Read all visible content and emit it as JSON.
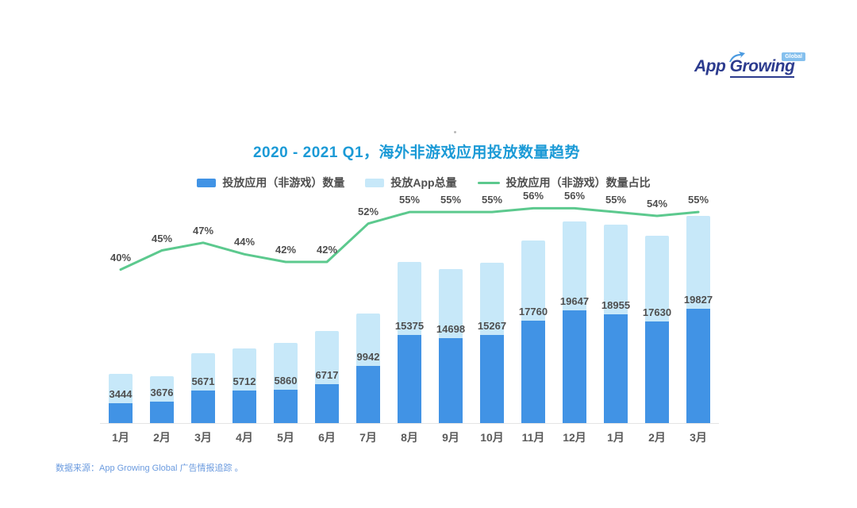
{
  "logo": {
    "text_app": "App",
    "text_growing": "Growing",
    "badge": "Global",
    "text_color": "#2c3b8e",
    "badge_color": "#85c0ee",
    "swoosh_color": "#4a9ae0"
  },
  "footer": {
    "text": "数据来源：App Growing Global 广告情报追踪 。",
    "color": "#6b9bdf"
  },
  "colors": {
    "title_blue": "#1b9ad6",
    "label_gray": "#4f4f4f",
    "axis_gray": "#e4e4e4"
  },
  "chart_data": {
    "type": "bar",
    "subtype": "stacked bars with percentage line overlay",
    "title": "2020 - 2021 Q1，海外非游戏应用投放数量趋势",
    "categories": [
      "1月",
      "2月",
      "3月",
      "4月",
      "5月",
      "6月",
      "7月",
      "8月",
      "9月",
      "10月",
      "11月",
      "12月",
      "1月",
      "2月",
      "3月"
    ],
    "series": [
      {
        "name": "投放应用（非游戏）数量",
        "type": "bar",
        "color": "#4193e5",
        "values": [
          3444,
          3676,
          5671,
          5712,
          5860,
          6717,
          9942,
          15375,
          14698,
          15267,
          17760,
          19647,
          18955,
          17630,
          19827
        ],
        "data_labels_visible": true
      },
      {
        "name": "投放App总量",
        "type": "bar",
        "color": "#c7e8f9",
        "values_estimated": [
          8600,
          8200,
          12100,
          13000,
          14000,
          16000,
          19100,
          28000,
          26700,
          27800,
          31700,
          35100,
          34500,
          32600,
          36000
        ],
        "data_labels_visible": false,
        "note": "total bar height; values not labeled in chart, estimated from bar heights and ratio line"
      },
      {
        "name": "投放应用（非游戏）数量占比",
        "type": "line",
        "color": "#5cc98e",
        "values_percent": [
          40,
          45,
          47,
          44,
          42,
          42,
          52,
          55,
          55,
          55,
          56,
          56,
          55,
          54,
          55
        ],
        "data_labels_visible": true
      }
    ],
    "value_axis": {
      "min": 0,
      "max": 40000,
      "ticks_visible": false
    },
    "percent_axis": {
      "min": 0,
      "max": 60,
      "ticks_visible": false
    },
    "legend_position": "top",
    "grid": false
  }
}
